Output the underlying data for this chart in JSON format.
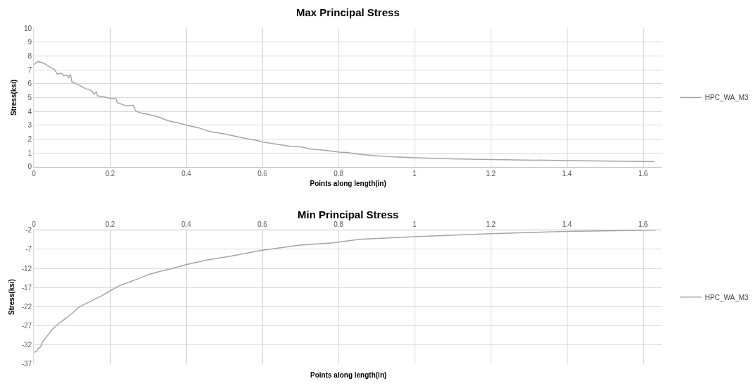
{
  "chart_data": [
    {
      "type": "line",
      "title": "Max Principal Stress",
      "xlabel": "Points along length(in)",
      "ylabel": "Stress(ksi)",
      "x": [
        0,
        0.006,
        0.012,
        0.027,
        0.036,
        0.055,
        0.061,
        0.073,
        0.079,
        0.088,
        0.091,
        0.096,
        0.1,
        0.116,
        0.134,
        0.152,
        0.158,
        0.164,
        0.167,
        0.185,
        0.2,
        0.216,
        0.219,
        0.243,
        0.261,
        0.267,
        0.28,
        0.304,
        0.328,
        0.353,
        0.383,
        0.401,
        0.432,
        0.462,
        0.498,
        0.523,
        0.553,
        0.584,
        0.602,
        0.644,
        0.675,
        0.705,
        0.723,
        0.766,
        0.802,
        0.822,
        0.856,
        0.89,
        0.945,
        1.0,
        1.096,
        1.199,
        1.404,
        1.629
      ],
      "series": [
        {
          "name": "HPC_WA_M3",
          "color": "#a5a5a5",
          "values": [
            7.35,
            7.53,
            7.6,
            7.47,
            7.3,
            7.0,
            6.7,
            6.75,
            6.57,
            6.62,
            6.4,
            6.67,
            6.12,
            5.94,
            5.67,
            5.49,
            5.25,
            5.4,
            5.13,
            5.04,
            4.95,
            4.9,
            4.64,
            4.4,
            4.44,
            4.04,
            3.9,
            3.77,
            3.59,
            3.32,
            3.14,
            3.01,
            2.82,
            2.55,
            2.38,
            2.24,
            2.06,
            1.91,
            1.79,
            1.61,
            1.48,
            1.43,
            1.3,
            1.19,
            1.06,
            1.04,
            0.9,
            0.82,
            0.71,
            0.65,
            0.57,
            0.53,
            0.45,
            0.37
          ]
        }
      ],
      "xlim": [
        0,
        1.65
      ],
      "xticks": [
        0,
        0.2,
        0.4,
        0.6,
        0.8,
        1,
        1.2,
        1.4,
        1.6
      ],
      "ylim": [
        0,
        10
      ],
      "yticks": [
        0,
        1,
        2,
        3,
        4,
        5,
        6,
        7,
        8,
        9,
        10
      ],
      "grid": true,
      "legend": "right"
    },
    {
      "type": "line",
      "title": "Min Principal Stress",
      "xlabel": "Points along length(in)",
      "ylabel": "Stress(ksi)",
      "x": [
        0,
        0.007,
        0.011,
        0.018,
        0.022,
        0.032,
        0.041,
        0.05,
        0.062,
        0.074,
        0.086,
        0.101,
        0.116,
        0.135,
        0.153,
        0.177,
        0.2,
        0.225,
        0.25,
        0.274,
        0.304,
        0.335,
        0.365,
        0.395,
        0.456,
        0.516,
        0.597,
        0.698,
        0.786,
        0.855,
        1.0,
        1.2,
        1.4,
        1.633
      ],
      "series": [
        {
          "name": "HPC_WA_M3",
          "color": "#a5a5a5",
          "values": [
            -34.0,
            -33.7,
            -33.0,
            -32.5,
            -31.3,
            -30.1,
            -28.9,
            -27.8,
            -26.7,
            -25.8,
            -24.9,
            -23.7,
            -22.3,
            -21.3,
            -20.4,
            -19.2,
            -17.9,
            -16.5,
            -15.6,
            -14.7,
            -13.5,
            -12.7,
            -12.0,
            -11.1,
            -9.8,
            -8.8,
            -7.3,
            -5.9,
            -5.3,
            -4.4,
            -3.7,
            -2.9,
            -2.3,
            -2.0
          ]
        }
      ],
      "xlim": [
        0,
        1.65
      ],
      "xticks": [
        0,
        0.2,
        0.4,
        0.6,
        0.8,
        1,
        1.2,
        1.4,
        1.6
      ],
      "ylim": [
        -37,
        -2
      ],
      "yticks": [
        -37,
        -32,
        -27,
        -22,
        -17,
        -12,
        -7,
        -2
      ],
      "grid": true,
      "legend": "right"
    }
  ]
}
